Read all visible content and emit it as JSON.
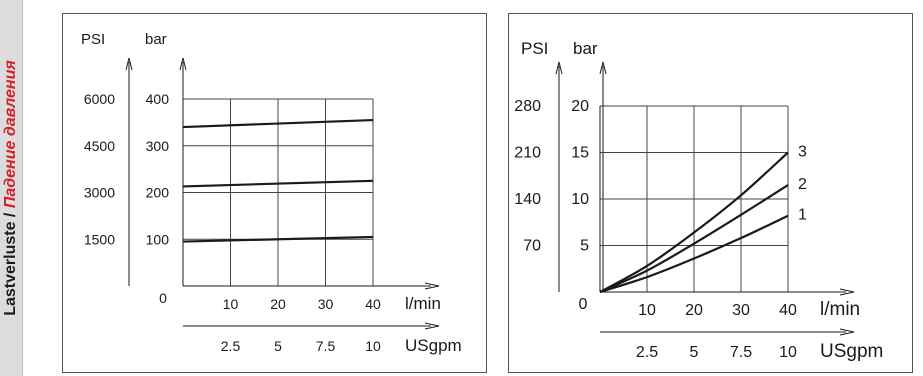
{
  "sidebar": {
    "label_de": "Lastverluste",
    "separator": "/",
    "label_ru": "Падение давления",
    "accent_color": "#d3202a"
  },
  "chart_data": [
    {
      "type": "line",
      "axis_titles": {
        "psi": "PSI",
        "bar": "bar"
      },
      "y_bar_ticks": [
        "100",
        "200",
        "300",
        "400"
      ],
      "y_psi_ticks": [
        "1500",
        "3000",
        "4500",
        "6000"
      ],
      "origin_label": "0",
      "x_lmin": {
        "label": "l/min",
        "ticks": [
          "10",
          "20",
          "30",
          "40"
        ]
      },
      "x_usgpm": {
        "label": "USgpm",
        "ticks": [
          "2.5",
          "5",
          "7.5",
          "10"
        ]
      },
      "ylim_bar": [
        0,
        400
      ],
      "xlim_lmin": [
        0,
        40
      ],
      "grid": true,
      "series": [
        {
          "x": [
            0,
            40
          ],
          "y": [
            95,
            105
          ]
        },
        {
          "x": [
            0,
            40
          ],
          "y": [
            213,
            225
          ]
        },
        {
          "x": [
            0,
            40
          ],
          "y": [
            340,
            355
          ]
        }
      ]
    },
    {
      "type": "line",
      "axis_titles": {
        "psi": "PSI",
        "bar": "bar"
      },
      "y_bar_ticks": [
        "5",
        "10",
        "15",
        "20"
      ],
      "y_psi_ticks": [
        "70",
        "140",
        "210",
        "280"
      ],
      "origin_label": "0",
      "x_lmin": {
        "label": "l/min",
        "ticks": [
          "10",
          "20",
          "30",
          "40"
        ]
      },
      "x_usgpm": {
        "label": "USgpm",
        "ticks": [
          "2.5",
          "5",
          "7.5",
          "10"
        ]
      },
      "ylim_bar": [
        0,
        20
      ],
      "xlim_lmin": [
        0,
        40
      ],
      "grid": true,
      "series": [
        {
          "name": "1",
          "x": [
            0,
            10,
            20,
            30,
            40
          ],
          "y": [
            0,
            1.6,
            3.6,
            5.8,
            8.2
          ]
        },
        {
          "name": "2",
          "x": [
            0,
            10,
            20,
            30,
            40
          ],
          "y": [
            0,
            2.3,
            5.2,
            8.3,
            11.5
          ]
        },
        {
          "name": "3",
          "x": [
            0,
            10,
            20,
            30,
            40
          ],
          "y": [
            0,
            2.8,
            6.4,
            10.4,
            15
          ]
        }
      ]
    }
  ]
}
